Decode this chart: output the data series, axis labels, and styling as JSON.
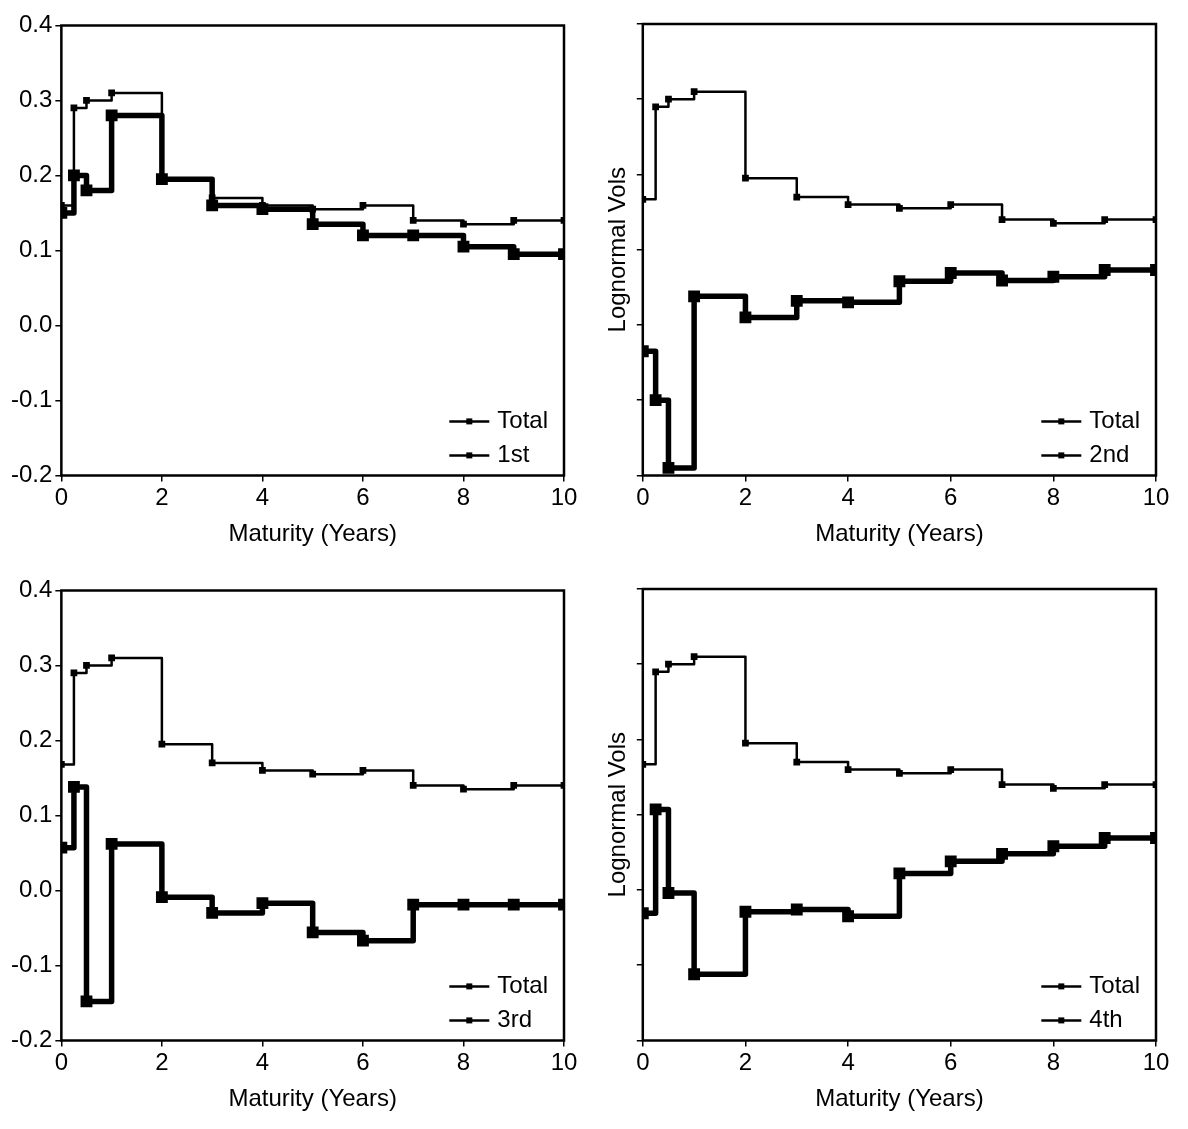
{
  "chart_data": [
    {
      "type": "step",
      "xlabel": "Maturity (Years)",
      "x": [
        0,
        0.25,
        0.5,
        1,
        2,
        3,
        4,
        5,
        6,
        7,
        8,
        9,
        10
      ],
      "series": [
        {
          "name": "Total",
          "color": "#000000",
          "values": [
            0.16,
            0.29,
            0.3,
            0.31,
            0.195,
            0.17,
            0.16,
            0.155,
            0.16,
            0.14,
            0.135,
            0.14,
            0.14
          ]
        },
        {
          "name": "1st",
          "color": "#000000",
          "values": [
            0.15,
            0.2,
            0.18,
            0.28,
            0.195,
            0.16,
            0.155,
            0.135,
            0.12,
            0.12,
            0.105,
            0.095,
            0.095
          ]
        }
      ],
      "xlim": [
        0,
        10
      ],
      "ylim": [
        -0.2,
        0.4
      ],
      "xticks": [
        0,
        2,
        4,
        6,
        8,
        10
      ],
      "yticks": [
        -0.2,
        -0.1,
        {
          "value": 0,
          "label": "0.0"
        },
        0.1,
        0.2,
        0.3,
        0.4
      ],
      "legend": "bottom right",
      "marker": "square"
    },
    {
      "type": "step",
      "xlabel": "Maturity (Years)",
      "ylabel": "Lognormal Vols",
      "x": [
        0,
        0.25,
        0.5,
        1,
        2,
        3,
        4,
        5,
        6,
        7,
        8,
        9,
        10
      ],
      "series": [
        {
          "name": "Total",
          "color": "#000000",
          "values": [
            0.167,
            0.29,
            0.3,
            0.31,
            0.195,
            0.17,
            0.16,
            0.155,
            0.16,
            0.14,
            0.135,
            0.14,
            0.14
          ]
        },
        {
          "name": "2nd",
          "color": "#000000",
          "values": [
            -0.035,
            -0.1,
            -0.19,
            0.038,
            0.01,
            0.032,
            0.03,
            0.058,
            0.069,
            0.059,
            0.064,
            0.073,
            0.073
          ]
        }
      ],
      "xlim": [
        0,
        10
      ],
      "ylim": [
        -0.2,
        0.4
      ],
      "xticks": [
        0,
        2,
        4,
        6,
        8,
        10
      ],
      "yticks": [
        {
          "value": -0.2,
          "label": null
        },
        {
          "value": -0.1,
          "label": null
        },
        {
          "value": 0,
          "label": null
        },
        {
          "value": 0.1,
          "label": null
        },
        {
          "value": 0.2,
          "label": null
        },
        {
          "value": 0.3,
          "label": null
        },
        {
          "value": 0.4,
          "label": null
        }
      ],
      "tick_labels": "x",
      "legend": "bottom right",
      "marker": "square"
    },
    {
      "type": "step",
      "xlabel": "Maturity (Years)",
      "x": [
        0,
        0.25,
        0.5,
        1,
        2,
        3,
        4,
        5,
        6,
        7,
        8,
        9,
        10
      ],
      "series": [
        {
          "name": "Total",
          "color": "#000000",
          "values": [
            0.168,
            0.29,
            0.3,
            0.31,
            0.195,
            0.17,
            0.16,
            0.155,
            0.16,
            0.14,
            0.135,
            0.14,
            0.14
          ]
        },
        {
          "name": "3rd",
          "color": "#000000",
          "values": [
            0.057,
            0.138,
            -0.148,
            0.062,
            -0.009,
            -0.03,
            -0.017,
            -0.056,
            -0.067,
            -0.019,
            -0.019,
            -0.019,
            -0.019
          ]
        }
      ],
      "xlim": [
        0,
        10
      ],
      "ylim": [
        -0.2,
        0.4
      ],
      "xticks": [
        0,
        2,
        4,
        6,
        8,
        10
      ],
      "yticks": [
        -0.2,
        -0.1,
        {
          "value": 0,
          "label": "0.0"
        },
        0.1,
        0.2,
        0.3,
        0.4
      ],
      "legend": "bottom right",
      "marker": "square"
    },
    {
      "type": "step",
      "xlabel": "Maturity (Years)",
      "ylabel": "Lognormal Vols",
      "x": [
        0,
        0.25,
        0.5,
        1,
        2,
        3,
        4,
        5,
        6,
        7,
        8,
        9,
        10
      ],
      "series": [
        {
          "name": "Total",
          "color": "#000000",
          "values": [
            0.167,
            0.29,
            0.3,
            0.31,
            0.195,
            0.17,
            0.16,
            0.155,
            0.16,
            0.14,
            0.135,
            0.14,
            0.14
          ]
        },
        {
          "name": "4th",
          "color": "#000000",
          "values": [
            -0.031,
            0.107,
            -0.004,
            -0.112,
            -0.029,
            -0.026,
            -0.035,
            0.022,
            0.038,
            0.048,
            0.058,
            0.069,
            0.069
          ]
        }
      ],
      "xlim": [
        0,
        10
      ],
      "ylim": [
        -0.2,
        0.4
      ],
      "xticks": [
        0,
        2,
        4,
        6,
        8,
        10
      ],
      "yticks": [
        {
          "value": -0.2,
          "label": null
        },
        {
          "value": -0.1,
          "label": null
        },
        {
          "value": 0,
          "label": null
        },
        {
          "value": 0.1,
          "label": null
        },
        {
          "value": 0.2,
          "label": null
        },
        {
          "value": 0.3,
          "label": null
        },
        {
          "value": 0.4,
          "label": null
        }
      ],
      "tick_labels": "x",
      "legend": "bottom right",
      "marker": "square"
    }
  ]
}
